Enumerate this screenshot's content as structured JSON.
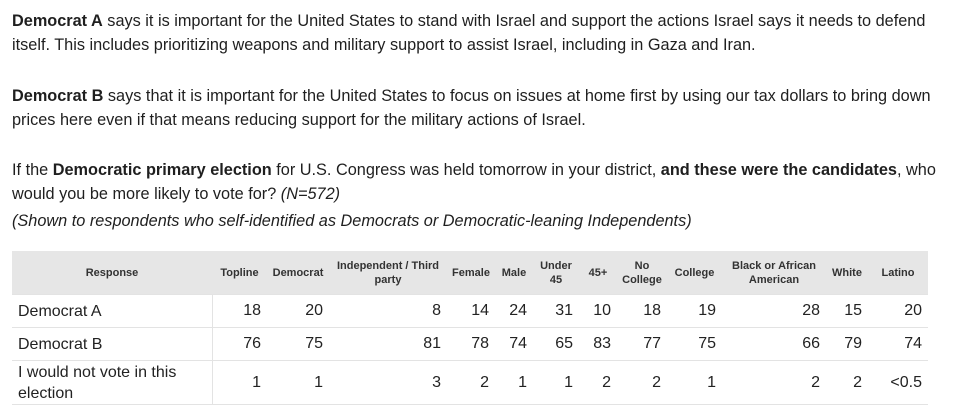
{
  "intro": {
    "a_name": "Democrat A",
    "a_text": " says it is important for the United States to stand with Israel and support the actions Israel says it needs to defend itself. This includes prioritizing weapons and military support to assist Israel, including in Gaza and Iran.",
    "b_name": "Democrat B",
    "b_text": " says that it is important for the United States to focus on issues at home first by using our tax dollars to bring down prices here even if that means reducing support for the military actions of Israel."
  },
  "question": {
    "pre": "If the ",
    "bold1": "Democratic primary election",
    "mid": " for U.S. Congress was held tomorrow in your district, ",
    "bold2": "and these were the candidates",
    "post": ", who would you be more likely to vote for?  ",
    "n": "(N=572)",
    "note": "(Shown to respondents who self-identified as Democrats or Democratic-leaning Independents)"
  },
  "table": {
    "headers": [
      "Response",
      "Topline",
      "Democrat",
      "Independent / Third party",
      "Female",
      "Male",
      "Under 45",
      "45+",
      "No College",
      "College",
      "Black or African American",
      "White",
      "Latino"
    ],
    "rows": [
      [
        "Democrat A",
        "18",
        "20",
        "8",
        "14",
        "24",
        "31",
        "10",
        "18",
        "19",
        "28",
        "15",
        "20"
      ],
      [
        "Democrat B",
        "76",
        "75",
        "81",
        "78",
        "74",
        "65",
        "83",
        "77",
        "75",
        "66",
        "79",
        "74"
      ],
      [
        "I would not vote in this election",
        "1",
        "1",
        "3",
        "2",
        "1",
        "1",
        "2",
        "2",
        "1",
        "2",
        "2",
        "<0.5"
      ]
    ]
  }
}
